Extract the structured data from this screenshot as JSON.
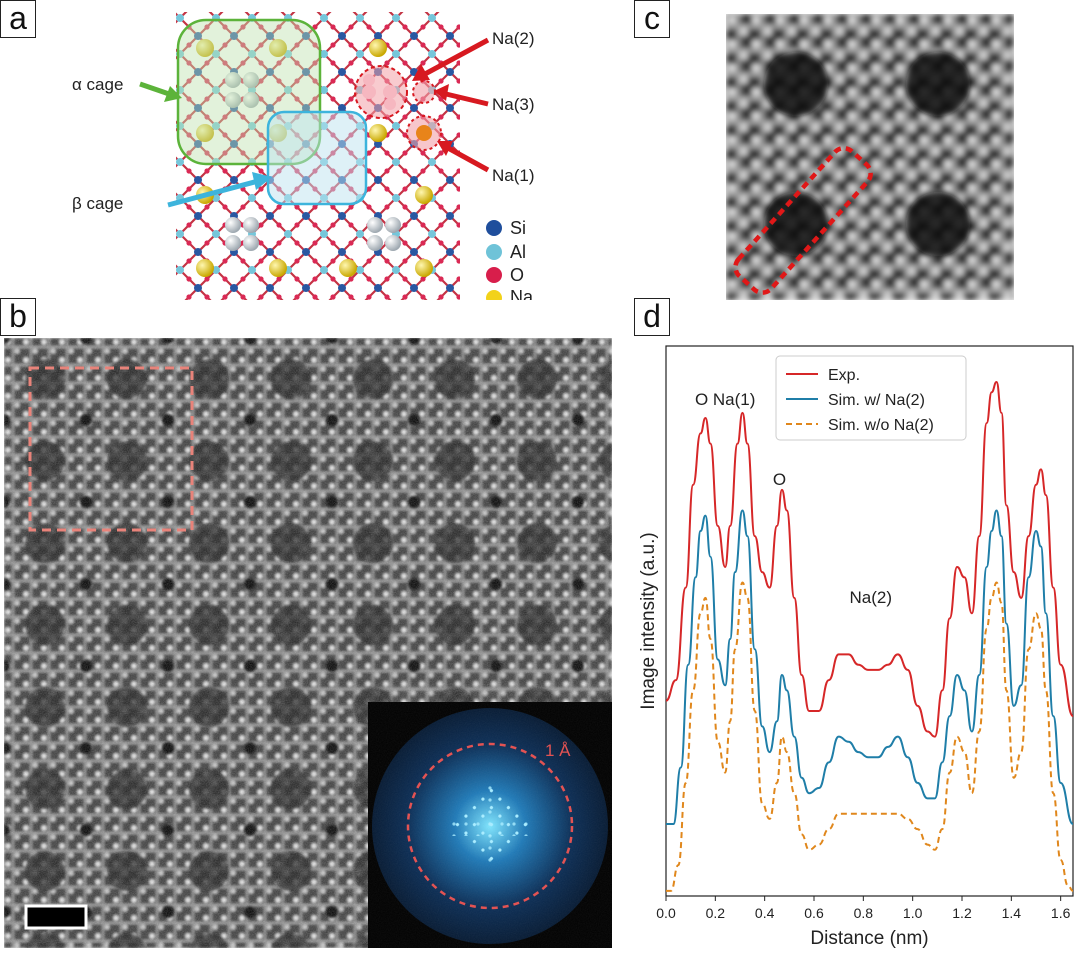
{
  "panels": {
    "a": "a",
    "b": "b",
    "c": "c",
    "d": "d"
  },
  "panel_a": {
    "labels": {
      "alpha_cage": "α cage",
      "beta_cage": "β cage",
      "na2": "Na(2)",
      "na3": "Na(3)",
      "na1": "Na(1)"
    },
    "legend": [
      {
        "label": "Si",
        "color": "#1f4e9c"
      },
      {
        "label": "Al",
        "color": "#6fc3d8"
      },
      {
        "label": "O",
        "color": "#d81e4b"
      },
      {
        "label": "Na",
        "color": "#f2d21a"
      }
    ],
    "colors": {
      "alpha_arrow": "#5cb33a",
      "beta_arrow": "#3db4dc",
      "na_arrow": "#d71920"
    }
  },
  "panel_b": {
    "fft_label": "1 Å",
    "colors": {
      "box": "#e8837a",
      "ring": "#e35353"
    }
  },
  "panel_c": {
    "colors": {
      "box": "#e01818"
    }
  },
  "chart_data": {
    "type": "line",
    "xlabel": "Distance (nm)",
    "ylabel": "Image intensity (a.u.)",
    "xlim": [
      0.0,
      1.65
    ],
    "ylim": [
      0,
      1.07
    ],
    "xticks": [
      "0.0",
      "0.2",
      "0.4",
      "0.6",
      "0.8",
      "1.0",
      "1.2",
      "1.4",
      "1.6"
    ],
    "legend_position": "top-center",
    "annotations": [
      {
        "text": "O Na(1)",
        "x": 0.24,
        "y": 0.955
      },
      {
        "text": "O",
        "x": 0.46,
        "y": 0.8
      },
      {
        "text": "Na(2)",
        "x": 0.83,
        "y": 0.57
      }
    ],
    "series": [
      {
        "name": "Exp.",
        "color": "#d62728",
        "dash": "solid",
        "x": [
          0.0,
          0.04,
          0.08,
          0.11,
          0.14,
          0.16,
          0.18,
          0.21,
          0.24,
          0.26,
          0.29,
          0.31,
          0.33,
          0.36,
          0.39,
          0.42,
          0.45,
          0.47,
          0.49,
          0.52,
          0.55,
          0.58,
          0.62,
          0.66,
          0.7,
          0.74,
          0.78,
          0.82,
          0.86,
          0.9,
          0.94,
          0.98,
          1.02,
          1.06,
          1.09,
          1.12,
          1.15,
          1.18,
          1.21,
          1.24,
          1.27,
          1.3,
          1.32,
          1.34,
          1.36,
          1.38,
          1.41,
          1.44,
          1.47,
          1.5,
          1.52,
          1.54,
          1.57,
          1.6,
          1.65
        ],
        "y": [
          0.38,
          0.42,
          0.6,
          0.8,
          0.9,
          0.93,
          0.88,
          0.72,
          0.64,
          0.72,
          0.88,
          0.94,
          0.88,
          0.7,
          0.63,
          0.6,
          0.72,
          0.79,
          0.75,
          0.58,
          0.43,
          0.36,
          0.36,
          0.42,
          0.47,
          0.47,
          0.45,
          0.44,
          0.44,
          0.45,
          0.47,
          0.44,
          0.37,
          0.32,
          0.31,
          0.4,
          0.54,
          0.64,
          0.62,
          0.55,
          0.7,
          0.92,
          0.98,
          1.0,
          0.94,
          0.76,
          0.63,
          0.58,
          0.7,
          0.8,
          0.83,
          0.78,
          0.6,
          0.45,
          0.35
        ]
      },
      {
        "name": "Sim. w/ Na(2)",
        "color": "#1f7ea8",
        "dash": "solid",
        "x": [
          0.0,
          0.03,
          0.06,
          0.09,
          0.12,
          0.14,
          0.16,
          0.18,
          0.21,
          0.24,
          0.26,
          0.28,
          0.31,
          0.33,
          0.36,
          0.39,
          0.42,
          0.45,
          0.47,
          0.49,
          0.52,
          0.55,
          0.58,
          0.62,
          0.66,
          0.7,
          0.74,
          0.78,
          0.82,
          0.86,
          0.9,
          0.94,
          0.98,
          1.02,
          1.06,
          1.09,
          1.12,
          1.15,
          1.18,
          1.21,
          1.24,
          1.27,
          1.3,
          1.32,
          1.34,
          1.36,
          1.38,
          1.41,
          1.44,
          1.47,
          1.5,
          1.52,
          1.54,
          1.57,
          1.6,
          1.65
        ],
        "y": [
          0.14,
          0.14,
          0.25,
          0.45,
          0.62,
          0.71,
          0.74,
          0.66,
          0.46,
          0.41,
          0.5,
          0.63,
          0.75,
          0.7,
          0.48,
          0.33,
          0.28,
          0.34,
          0.43,
          0.4,
          0.31,
          0.23,
          0.2,
          0.21,
          0.26,
          0.31,
          0.3,
          0.28,
          0.27,
          0.27,
          0.29,
          0.31,
          0.27,
          0.22,
          0.19,
          0.19,
          0.26,
          0.35,
          0.43,
          0.4,
          0.32,
          0.43,
          0.64,
          0.71,
          0.75,
          0.7,
          0.53,
          0.37,
          0.41,
          0.62,
          0.71,
          0.68,
          0.55,
          0.35,
          0.22,
          0.14
        ]
      },
      {
        "name": "Sim. w/o Na(2)",
        "color": "#e0871c",
        "dash": "dashed",
        "x": [
          0.0,
          0.02,
          0.05,
          0.08,
          0.11,
          0.14,
          0.16,
          0.18,
          0.21,
          0.24,
          0.26,
          0.28,
          0.31,
          0.33,
          0.36,
          0.39,
          0.42,
          0.45,
          0.47,
          0.49,
          0.52,
          0.55,
          0.58,
          0.62,
          0.66,
          0.7,
          0.74,
          0.78,
          0.82,
          0.86,
          0.9,
          0.94,
          0.98,
          1.02,
          1.06,
          1.09,
          1.12,
          1.15,
          1.18,
          1.21,
          1.24,
          1.27,
          1.3,
          1.32,
          1.34,
          1.36,
          1.38,
          1.41,
          1.44,
          1.47,
          1.5,
          1.52,
          1.54,
          1.57,
          1.6,
          1.63,
          1.65
        ],
        "y": [
          0.01,
          0.01,
          0.06,
          0.22,
          0.4,
          0.55,
          0.58,
          0.5,
          0.3,
          0.24,
          0.34,
          0.48,
          0.61,
          0.58,
          0.36,
          0.18,
          0.15,
          0.22,
          0.31,
          0.28,
          0.2,
          0.12,
          0.09,
          0.1,
          0.13,
          0.16,
          0.16,
          0.16,
          0.16,
          0.16,
          0.16,
          0.16,
          0.15,
          0.13,
          0.1,
          0.09,
          0.13,
          0.24,
          0.31,
          0.28,
          0.2,
          0.32,
          0.52,
          0.58,
          0.61,
          0.57,
          0.4,
          0.23,
          0.28,
          0.48,
          0.55,
          0.52,
          0.4,
          0.2,
          0.07,
          0.02,
          0.01
        ]
      }
    ]
  }
}
